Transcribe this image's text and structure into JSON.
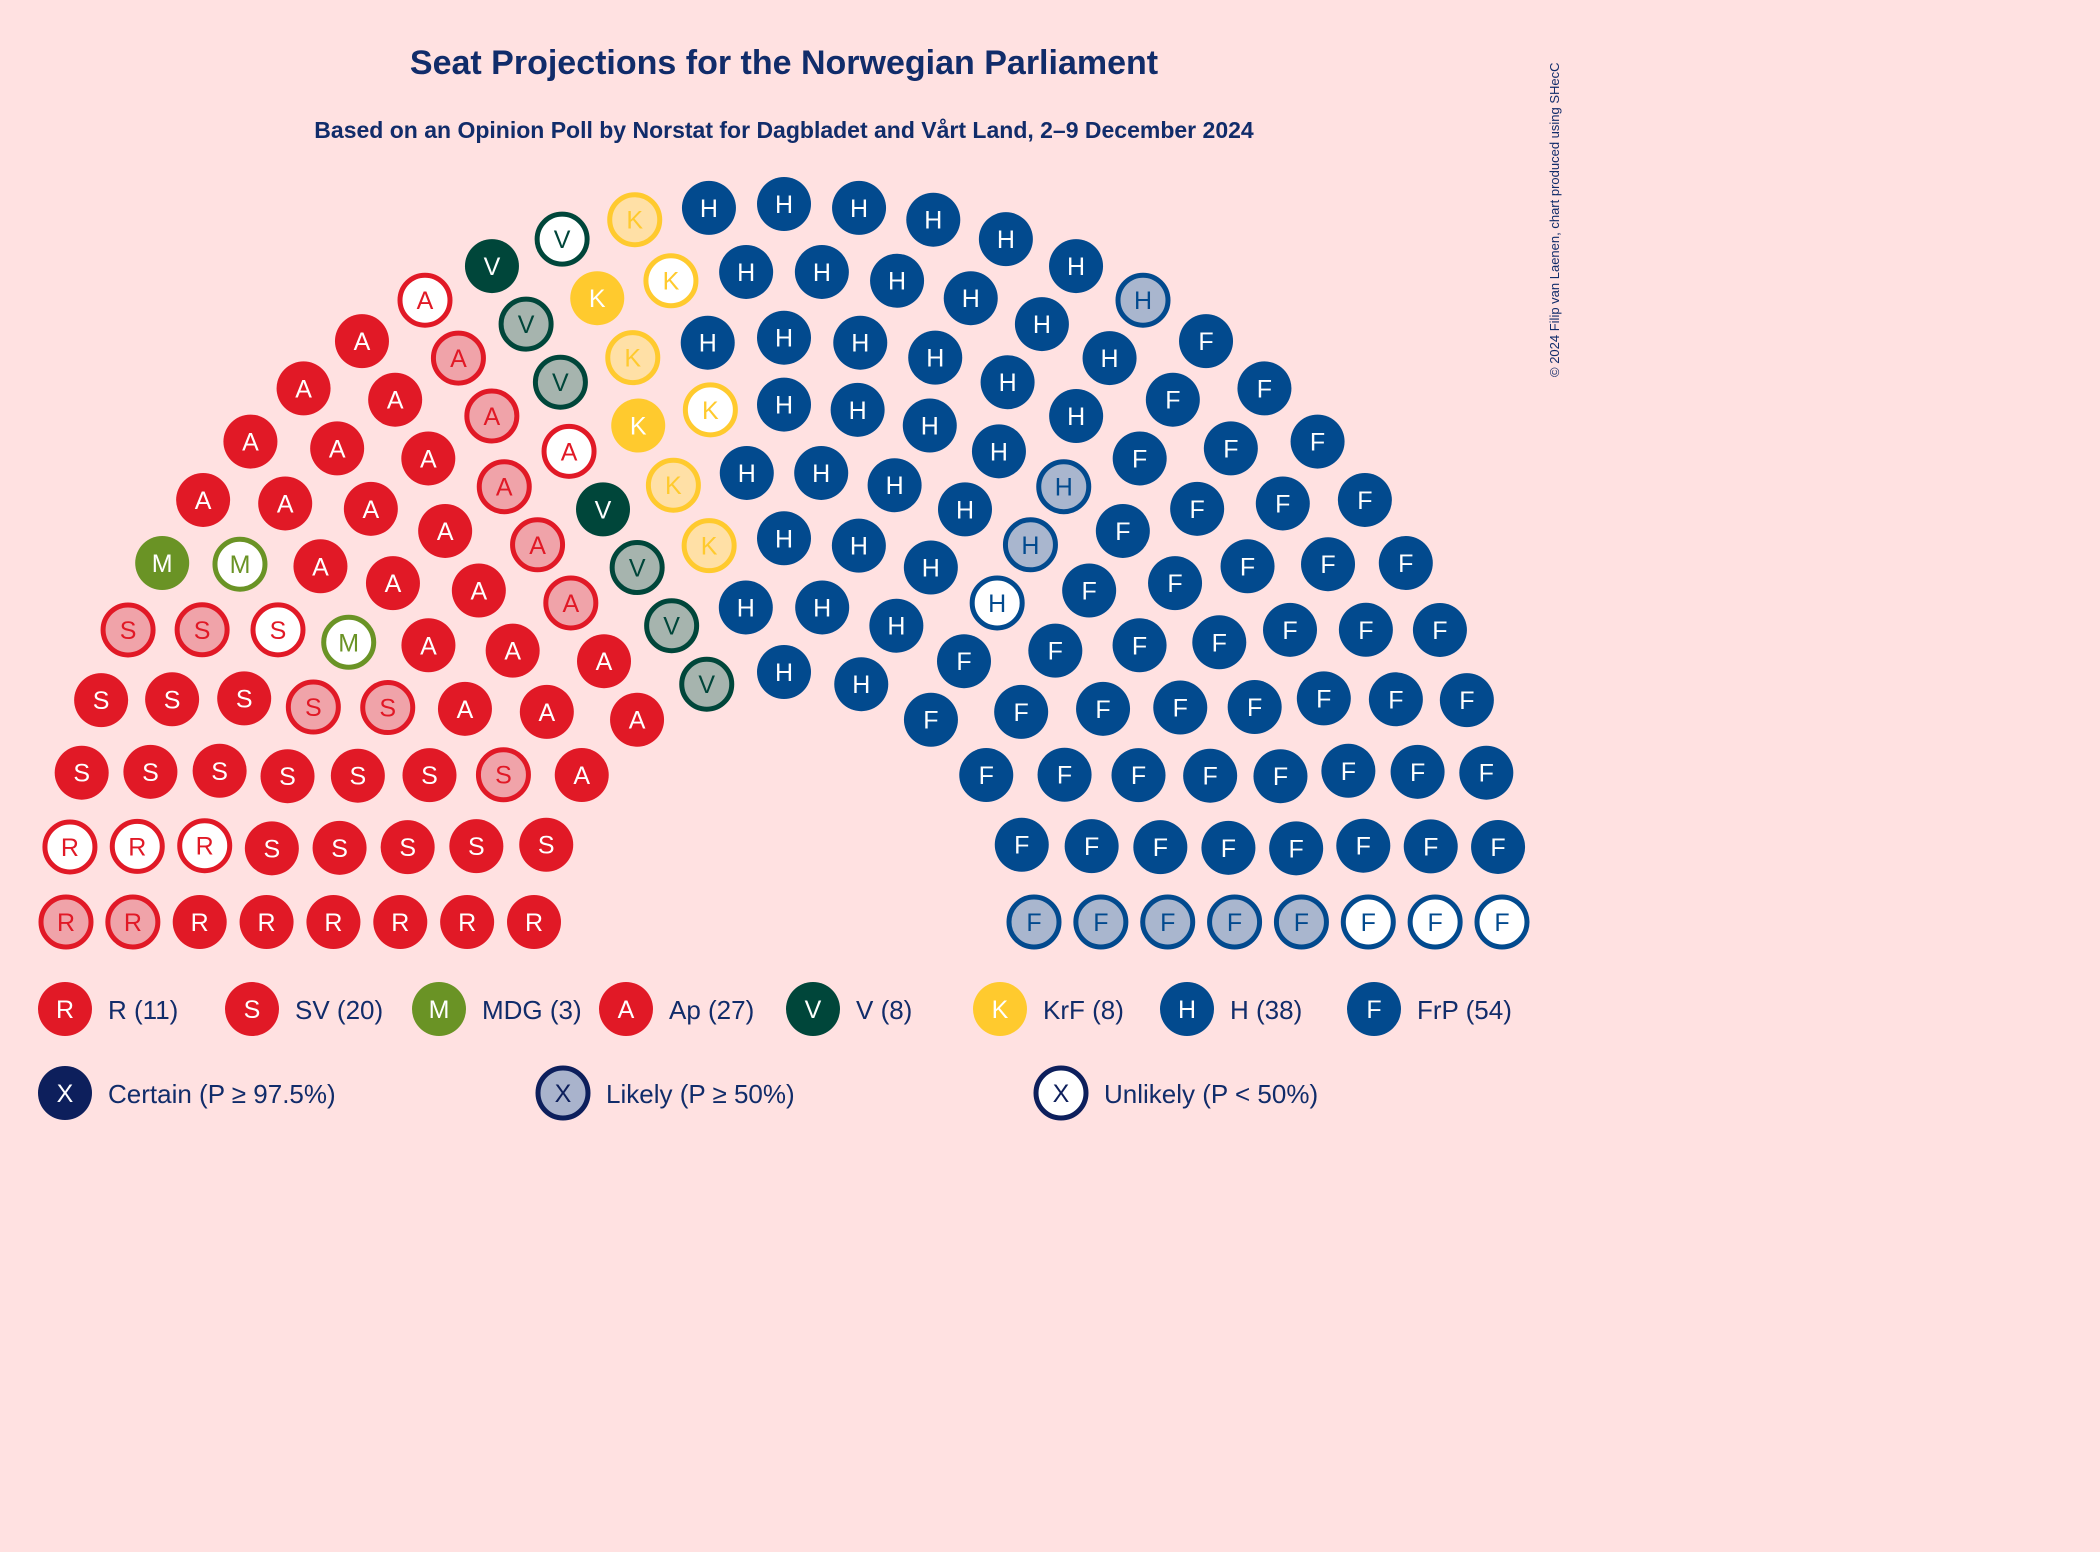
{
  "chart_data": {
    "type": "parliament",
    "title": "Seat Projections for the Norwegian Parliament",
    "subtitle": "Based on an Opinion Poll by Norstat for Dagbladet and Vårt Land, 2–9 December 2024",
    "credit": "© 2024 Filip van Laenen, chart produced using SHecC",
    "total_seats": 169,
    "parties": [
      {
        "letter": "R",
        "label": "R (11)",
        "seats": 11,
        "certain": 6,
        "likely": 2,
        "unlikely": 3,
        "color": "#E11926",
        "light": "#F0A3A9",
        "text_light": "#E11926"
      },
      {
        "letter": "S",
        "label": "SV (20)",
        "seats": 20,
        "certain": 14,
        "likely": 5,
        "unlikely": 1,
        "color": "#E11926",
        "light": "#F0A3A9",
        "text_light": "#E11926"
      },
      {
        "letter": "M",
        "label": "MDG (3)",
        "seats": 3,
        "certain": 1,
        "likely": 0,
        "unlikely": 2,
        "color": "#6A9325",
        "light": "#B5C992",
        "text_light": "#6A9325"
      },
      {
        "letter": "A",
        "label": "Ap (27)",
        "seats": 27,
        "certain": 20,
        "likely": 5,
        "unlikely": 2,
        "color": "#E11926",
        "light": "#F0A3A9",
        "text_light": "#E11926"
      },
      {
        "letter": "V",
        "label": "V (8)",
        "seats": 8,
        "certain": 2,
        "likely": 5,
        "unlikely": 1,
        "color": "#00463A",
        "light": "#A6B4AE",
        "text_light": "#00463A"
      },
      {
        "letter": "K",
        "label": "KrF (8)",
        "seats": 8,
        "certain": 2,
        "likely": 4,
        "unlikely": 2,
        "color": "#FFCA2E",
        "light": "#FFE0A6",
        "text_light": "#FFCA2E"
      },
      {
        "letter": "H",
        "label": "H (38)",
        "seats": 38,
        "certain": 34,
        "likely": 3,
        "unlikely": 1,
        "color": "#024A8E",
        "light": "#A9B6CE",
        "text_light": "#024A8E"
      },
      {
        "letter": "F",
        "label": "FrP (54)",
        "seats": 54,
        "certain": 46,
        "likely": 5,
        "unlikely": 3,
        "color": "#024A8E",
        "light": "#A9B6CE",
        "text_light": "#024A8E"
      }
    ],
    "probability_legend": [
      {
        "letter": "X",
        "label": "Certain (P ≥ 97.5%)",
        "kind": "certain"
      },
      {
        "letter": "X",
        "label": "Likely (P ≥ 50%)",
        "kind": "likely"
      },
      {
        "letter": "X",
        "label": "Unlikely (P < 50%)",
        "kind": "unlikely"
      }
    ],
    "legend_colors": {
      "certain": "#0D1F5C",
      "likely": "#A9B3CC",
      "unlikely": "#FFFFFF",
      "outline": "#0D1F5C"
    }
  }
}
